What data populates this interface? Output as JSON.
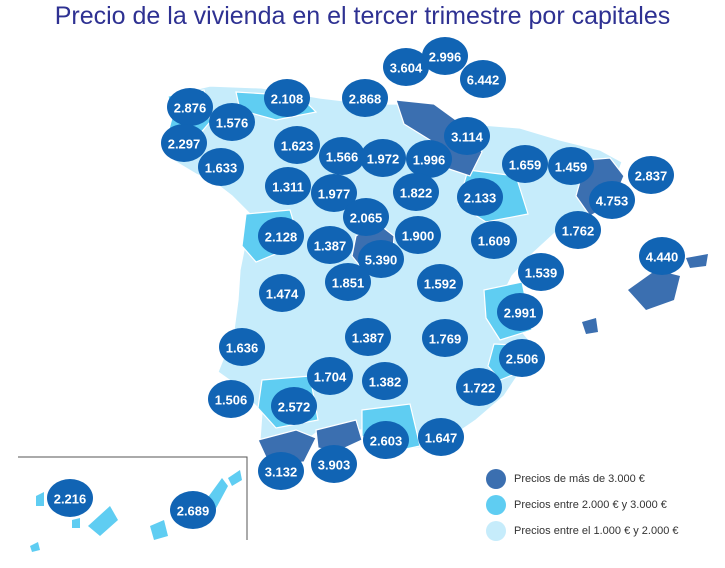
{
  "title": "Precio de la vivienda en el tercer trimestre por capitales",
  "colors": {
    "high": "#3b6fb0",
    "medium": "#5fcdf2",
    "low": "#c6ecfb",
    "bubble": "#1164b4",
    "border": "#ffffff"
  },
  "legend": [
    {
      "key": "high",
      "label": "Precios de más de 3.000 €"
    },
    {
      "key": "medium",
      "label": "Precios entre 2.000 € y 3.000 €"
    },
    {
      "key": "low",
      "label": "Precios entre el 1.000 € y 2.000 €"
    }
  ],
  "prices": [
    {
      "value": "3.604"
    },
    {
      "value": "2.996"
    },
    {
      "value": "6.442"
    },
    {
      "value": "2.876"
    },
    {
      "value": "2.108"
    },
    {
      "value": "2.868"
    },
    {
      "value": "1.576"
    },
    {
      "value": "2.297"
    },
    {
      "value": "3.114"
    },
    {
      "value": "1.623"
    },
    {
      "value": "1.566"
    },
    {
      "value": "1.972"
    },
    {
      "value": "1.996"
    },
    {
      "value": "1.659"
    },
    {
      "value": "1.459"
    },
    {
      "value": "2.837"
    },
    {
      "value": "1.633"
    },
    {
      "value": "1.311"
    },
    {
      "value": "1.977"
    },
    {
      "value": "1.822"
    },
    {
      "value": "2.133"
    },
    {
      "value": "4.753"
    },
    {
      "value": "2.065"
    },
    {
      "value": "2.128"
    },
    {
      "value": "1.387"
    },
    {
      "value": "1.900"
    },
    {
      "value": "1.609"
    },
    {
      "value": "1.762"
    },
    {
      "value": "5.390"
    },
    {
      "value": "4.440"
    },
    {
      "value": "1.851"
    },
    {
      "value": "1.592"
    },
    {
      "value": "1.539"
    },
    {
      "value": "1.474"
    },
    {
      "value": "2.991"
    },
    {
      "value": "1.387"
    },
    {
      "value": "1.769"
    },
    {
      "value": "1.636"
    },
    {
      "value": "2.506"
    },
    {
      "value": "1.704"
    },
    {
      "value": "1.382"
    },
    {
      "value": "1.722"
    },
    {
      "value": "1.506"
    },
    {
      "value": "2.572"
    },
    {
      "value": "2.603"
    },
    {
      "value": "1.647"
    },
    {
      "value": "3.132"
    },
    {
      "value": "3.903"
    },
    {
      "value": "2.216"
    },
    {
      "value": "2.689"
    }
  ]
}
